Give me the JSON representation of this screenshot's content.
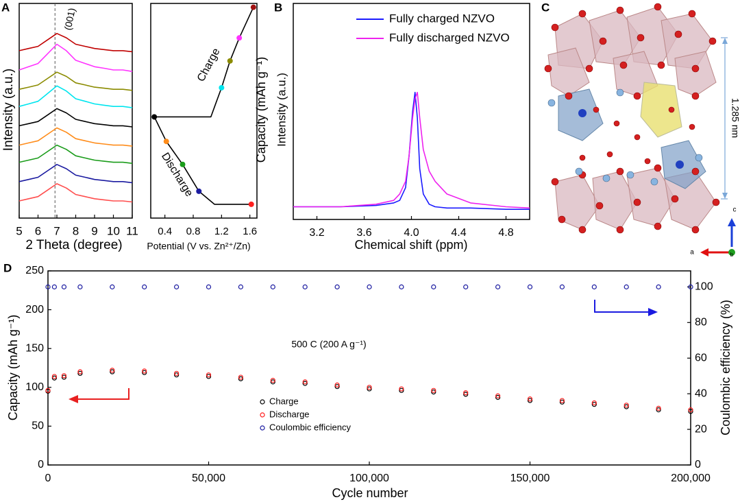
{
  "chart_data": [
    {
      "type": "line",
      "panel": "A",
      "xlabel": "2 Theta (degree)",
      "ylabel": "Intensity (a.u.)",
      "xlim": [
        5,
        11
      ],
      "xticks": [
        5,
        6,
        7,
        8,
        9,
        10,
        11
      ],
      "ylim": [
        0,
        10
      ],
      "reference_line": 6.9,
      "annotations": [
        "(001)"
      ],
      "x": [
        5,
        5.5,
        6,
        6.5,
        7,
        7.5,
        8,
        8.5,
        9,
        9.5,
        10,
        10.5,
        11
      ],
      "series": [
        {
          "color": "#c00000",
          "values": [
            7.8,
            7.9,
            8.0,
            8.3,
            8.6,
            8.4,
            8.1,
            8.0,
            7.9,
            7.85,
            7.8,
            7.8,
            7.75
          ]
        },
        {
          "color": "#ff33ff",
          "values": [
            6.9,
            7.05,
            7.2,
            7.65,
            8.1,
            7.8,
            7.35,
            7.2,
            7.05,
            6.98,
            6.9,
            6.9,
            6.83
          ]
        },
        {
          "color": "#8b8b00",
          "values": [
            6.0,
            6.1,
            6.2,
            6.5,
            6.8,
            6.6,
            6.3,
            6.2,
            6.1,
            6.05,
            6.0,
            6.0,
            5.95
          ]
        },
        {
          "color": "#00e5ee",
          "values": [
            5.2,
            5.32,
            5.44,
            5.8,
            6.16,
            5.92,
            5.56,
            5.44,
            5.32,
            5.26,
            5.2,
            5.2,
            5.14
          ]
        },
        {
          "color": "#000000",
          "values": [
            4.3,
            4.4,
            4.5,
            4.8,
            5.1,
            4.9,
            4.6,
            4.5,
            4.4,
            4.35,
            4.3,
            4.3,
            4.25
          ]
        },
        {
          "color": "#ff8c1a",
          "values": [
            3.4,
            3.5,
            3.6,
            3.9,
            4.2,
            4.0,
            3.7,
            3.6,
            3.5,
            3.45,
            3.4,
            3.4,
            3.35
          ]
        },
        {
          "color": "#1a9c1a",
          "values": [
            2.6,
            2.7,
            2.8,
            3.1,
            3.4,
            3.2,
            2.9,
            2.8,
            2.7,
            2.65,
            2.6,
            2.6,
            2.55
          ]
        },
        {
          "color": "#1a1aa0",
          "values": [
            1.7,
            1.8,
            1.9,
            2.2,
            2.5,
            2.3,
            2.0,
            1.9,
            1.8,
            1.75,
            1.7,
            1.7,
            1.65
          ]
        },
        {
          "color": "#ff4d4d",
          "values": [
            0.8,
            0.9,
            1.0,
            1.3,
            1.6,
            1.4,
            1.1,
            1.0,
            0.9,
            0.85,
            0.8,
            0.8,
            0.75
          ]
        }
      ]
    },
    {
      "type": "line",
      "xlabel": "Potential (V vs. Zn²⁺/Zn)",
      "ylabel": "Capacity (mAh g⁻¹)",
      "xlim": [
        0.2,
        1.7
      ],
      "xticks": [
        0.4,
        0.8,
        1.2,
        1.6
      ],
      "ylim": [
        0,
        280
      ],
      "annotations": [
        "Charge",
        "Discharge"
      ],
      "series": [
        {
          "color": "#000000",
          "x": [
            1.62,
            1.1,
            0.88,
            0.65,
            0.42,
            0.25,
            1.05,
            1.12,
            1.2,
            1.32,
            1.45,
            1.65
          ],
          "values": [
            18,
            18,
            35,
            70,
            100,
            132,
            132,
            150,
            170,
            205,
            235,
            275
          ]
        }
      ],
      "markers": {
        "x": [
          1.62,
          0.88,
          0.65,
          0.42,
          0.25,
          1.2,
          1.32,
          1.45,
          1.65
        ],
        "values": [
          18,
          35,
          70,
          100,
          132,
          170,
          205,
          235,
          275
        ],
        "colors": [
          "#ff2020",
          "#1a1aa0",
          "#1a9c1a",
          "#ff8c1a",
          "#000000",
          "#00e5ee",
          "#8b8b00",
          "#ff33ff",
          "#a01010"
        ]
      }
    },
    {
      "type": "line",
      "panel": "B",
      "xlabel": "Chemical shift (ppm)",
      "ylabel": "Intensity (a.u.)",
      "xlim": [
        3.0,
        5.0
      ],
      "xticks": [
        3.2,
        3.6,
        {
          "value": 4,
          "label": "4.0"
        },
        4.4,
        4.8
      ],
      "ylim": [
        0,
        1.7
      ],
      "legend": "upper right",
      "x": [
        3.0,
        3.4,
        3.7,
        3.85,
        3.9,
        3.95,
        3.98,
        4.01,
        4.03,
        4.05,
        4.07,
        4.1,
        4.15,
        4.2,
        4.3,
        4.5,
        4.8,
        5.0
      ],
      "series": [
        {
          "name": "Fully charged NZVO",
          "color": "#1a1aff",
          "values": [
            0.1,
            0.1,
            0.11,
            0.13,
            0.15,
            0.25,
            0.5,
            0.85,
            1.0,
            0.8,
            0.4,
            0.2,
            0.12,
            0.1,
            0.09,
            0.09,
            0.08,
            0.08
          ]
        },
        {
          "name": "Fully discharged NZVO",
          "color": "#ee22ee",
          "values": [
            0.1,
            0.1,
            0.12,
            0.15,
            0.2,
            0.3,
            0.5,
            0.8,
            0.95,
            1.0,
            0.8,
            0.55,
            0.38,
            0.3,
            0.2,
            0.13,
            0.1,
            0.09
          ]
        }
      ]
    },
    {
      "type": "scatter",
      "panel": "D",
      "xlabel": "Cycle number",
      "ylabel": "Capacity (mAh g⁻¹)",
      "y2label": "Coulombic efficiency (%)",
      "annotations": [
        "500 C (200 A g⁻¹)"
      ],
      "legend": "center",
      "xlim": [
        0,
        200000
      ],
      "xticks": [
        0,
        {
          "value": 50000,
          "label": "50,000"
        },
        {
          "value": 100000,
          "label": "100,000"
        },
        {
          "value": 150000,
          "label": "150,000"
        },
        {
          "value": 200000,
          "label": "200,000"
        }
      ],
      "ylim": [
        0,
        250
      ],
      "yticks": [
        0,
        50,
        100,
        150,
        200,
        250
      ],
      "y2lim": [
        0,
        109
      ],
      "y2ticks": [
        0,
        20,
        40,
        60,
        80,
        100
      ],
      "x": [
        0,
        2000,
        5000,
        10000,
        20000,
        30000,
        40000,
        50000,
        60000,
        70000,
        80000,
        90000,
        100000,
        110000,
        120000,
        130000,
        140000,
        150000,
        160000,
        170000,
        180000,
        190000,
        200000
      ],
      "series": [
        {
          "name": "Coulombic efficiency",
          "color": "#1a1aa0",
          "axis": "y2",
          "values": [
            100,
            100,
            100,
            100,
            100,
            100,
            100,
            100,
            100,
            100,
            100,
            100,
            100,
            100,
            100,
            100,
            100,
            100,
            100,
            100,
            100,
            100,
            100
          ]
        },
        {
          "name": "Charge",
          "color": "#000000",
          "values": [
            95,
            112,
            113,
            118,
            120,
            119,
            116,
            114,
            111,
            107,
            105,
            101,
            98,
            96,
            94,
            91,
            87,
            83,
            81,
            78,
            75,
            71,
            69
          ]
        },
        {
          "name": "Discharge",
          "color": "#ff1a1a",
          "values": [
            96,
            114,
            115,
            120,
            122,
            121,
            118,
            116,
            113,
            109,
            107,
            103,
            100,
            98,
            96,
            93,
            89,
            85,
            83,
            80,
            77,
            73,
            71
          ]
        }
      ]
    }
  ],
  "structure": {
    "panel": "C",
    "dimension": "1.285 nm",
    "axes": [
      "c",
      "a",
      "b"
    ]
  }
}
